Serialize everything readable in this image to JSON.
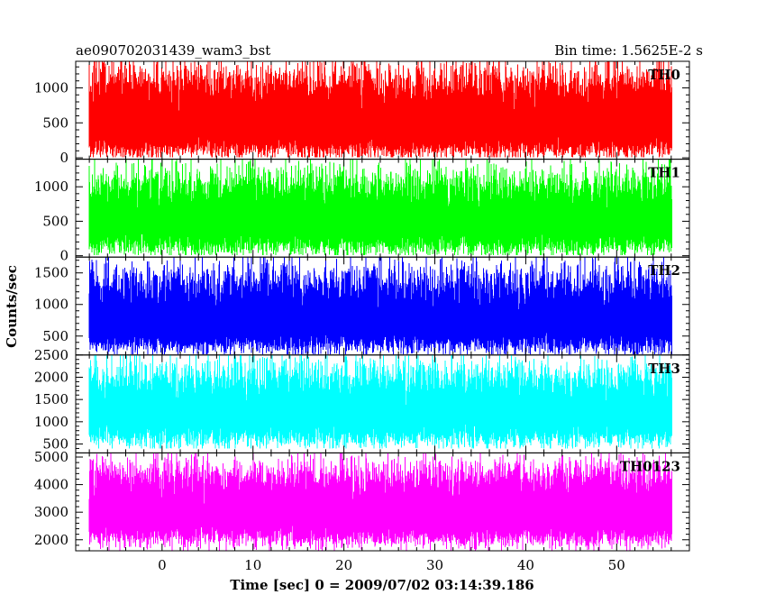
{
  "chart_data": [
    {
      "type": "line",
      "title": "ae090702031439_wam3_bst",
      "subtitle": "Bin time: 1.5625E-2 s",
      "xlabel": "Time [sec] 0 = 2009/07/02 03:14:39.186",
      "ylabel": "Counts/sec",
      "xlim": [
        -9.5,
        58
      ],
      "x_ticks": [
        0,
        10,
        20,
        30,
        40,
        50
      ],
      "data_x_range": [
        -8,
        56
      ],
      "panels": [
        {
          "name": "TH0",
          "color": "#ff0000",
          "ylim": [
            -20,
            1380
          ],
          "y_ticks": [
            0,
            500,
            1000
          ],
          "band": {
            "low_mean": 130,
            "low_spread": 80,
            "high_mean": 1060,
            "high_spread": 180,
            "low_floor": 10,
            "high_ceil": 1380
          }
        },
        {
          "name": "TH1",
          "color": "#00ff00",
          "ylim": [
            -20,
            1400
          ],
          "y_ticks": [
            0,
            500,
            1000
          ],
          "band": {
            "low_mean": 150,
            "low_spread": 90,
            "high_mean": 1000,
            "high_spread": 170,
            "low_floor": 10,
            "high_ceil": 1400
          }
        },
        {
          "name": "TH2",
          "color": "#0000ff",
          "ylim": [
            200,
            1750
          ],
          "y_ticks": [
            500,
            1000,
            1500
          ],
          "band": {
            "low_mean": 370,
            "low_spread": 90,
            "high_mean": 1300,
            "high_spread": 200,
            "low_floor": 210,
            "high_ceil": 1750
          }
        },
        {
          "name": "TH3",
          "color": "#00ffff",
          "ylim": [
            300,
            2500
          ],
          "y_ticks": [
            500,
            1000,
            1500,
            2000,
            2500
          ],
          "band": {
            "low_mean": 650,
            "low_spread": 140,
            "high_mean": 1950,
            "high_spread": 260,
            "low_floor": 400,
            "high_ceil": 2500
          }
        },
        {
          "name": "TH0123",
          "color": "#ff00ff",
          "ylim": [
            1600,
            5150
          ],
          "y_ticks": [
            2000,
            3000,
            4000,
            5000
          ],
          "band": {
            "low_mean": 2100,
            "low_spread": 220,
            "high_mean": 4250,
            "high_spread": 400,
            "low_floor": 1620,
            "high_ceil": 5150
          }
        }
      ]
    }
  ]
}
